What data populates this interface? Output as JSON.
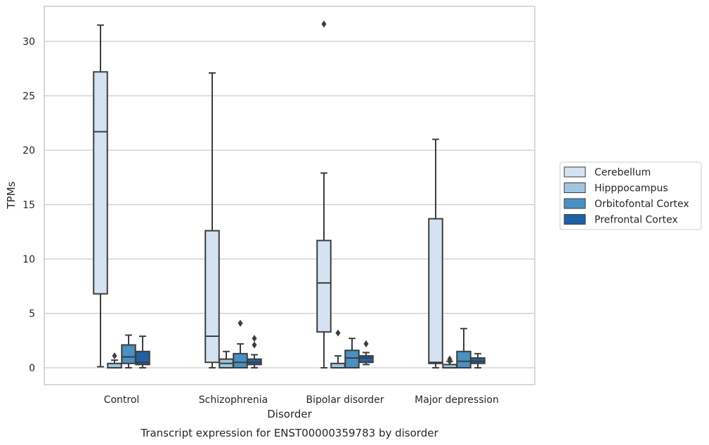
{
  "chart_data": {
    "type": "box",
    "title": "",
    "caption": "Transcript expression for ENST00000359783 by disorder",
    "xlabel": "Disorder",
    "ylabel": "TPMs",
    "ylim": [
      -1.5,
      32.8
    ],
    "yticks": [
      0,
      5,
      10,
      15,
      20,
      25,
      30
    ],
    "grid": "horizontal",
    "legend_position": "right",
    "categories": [
      "Control",
      "Schizophrenia",
      "Bipolar disorder",
      "Major depression"
    ],
    "series": [
      {
        "name": "Cerebellum",
        "color": "#d4e2f1",
        "boxes": [
          {
            "whisker_low": 0.1,
            "q1": 6.8,
            "median": 21.7,
            "q3": 27.2,
            "whisker_high": 31.5,
            "outliers": []
          },
          {
            "whisker_low": 0.0,
            "q1": 0.5,
            "median": 2.9,
            "q3": 12.6,
            "whisker_high": 27.1,
            "outliers": []
          },
          {
            "whisker_low": 0.0,
            "q1": 3.3,
            "median": 7.8,
            "q3": 11.7,
            "whisker_high": 17.9,
            "outliers": [
              31.6
            ]
          },
          {
            "whisker_low": 0.0,
            "q1": 0.4,
            "median": 0.5,
            "q3": 13.7,
            "whisker_high": 21.0,
            "outliers": []
          }
        ]
      },
      {
        "name": "Hipppocampus",
        "color": "#9ec6df",
        "boxes": [
          {
            "whisker_low": 0.0,
            "q1": 0.0,
            "median": 0.0,
            "q3": 0.4,
            "whisker_high": 0.7,
            "outliers": [
              1.1
            ]
          },
          {
            "whisker_low": 0.0,
            "q1": 0.0,
            "median": 0.4,
            "q3": 0.8,
            "whisker_high": 1.5,
            "outliers": []
          },
          {
            "whisker_low": 0.0,
            "q1": 0.0,
            "median": 0.0,
            "q3": 0.4,
            "whisker_high": 1.1,
            "outliers": [
              3.2
            ]
          },
          {
            "whisker_low": 0.0,
            "q1": 0.0,
            "median": 0.0,
            "q3": 0.3,
            "whisker_high": 0.6,
            "outliers": [
              0.8,
              0.6
            ]
          }
        ]
      },
      {
        "name": "Orbitofontal Cortex",
        "color": "#4a90c2",
        "boxes": [
          {
            "whisker_low": 0.0,
            "q1": 0.4,
            "median": 1.0,
            "q3": 2.1,
            "whisker_high": 3.0,
            "outliers": []
          },
          {
            "whisker_low": 0.0,
            "q1": 0.0,
            "median": 0.5,
            "q3": 1.3,
            "whisker_high": 2.2,
            "outliers": [
              4.1
            ]
          },
          {
            "whisker_low": 0.0,
            "q1": 0.0,
            "median": 0.9,
            "q3": 1.6,
            "whisker_high": 2.7,
            "outliers": []
          },
          {
            "whisker_low": 0.0,
            "q1": 0.0,
            "median": 0.6,
            "q3": 1.5,
            "whisker_high": 3.6,
            "outliers": []
          }
        ]
      },
      {
        "name": "Prefrontal Cortex",
        "color": "#2060a7",
        "boxes": [
          {
            "whisker_low": 0.0,
            "q1": 0.3,
            "median": 0.5,
            "q3": 1.5,
            "whisker_high": 2.9,
            "outliers": []
          },
          {
            "whisker_low": 0.0,
            "q1": 0.3,
            "median": 0.5,
            "q3": 0.8,
            "whisker_high": 1.2,
            "outliers": [
              2.7,
              2.1
            ]
          },
          {
            "whisker_low": 0.3,
            "q1": 0.5,
            "median": 0.9,
            "q3": 1.1,
            "whisker_high": 1.4,
            "outliers": [
              2.2
            ]
          },
          {
            "whisker_low": 0.0,
            "q1": 0.4,
            "median": 0.6,
            "q3": 0.9,
            "whisker_high": 1.3,
            "outliers": []
          }
        ]
      }
    ]
  }
}
